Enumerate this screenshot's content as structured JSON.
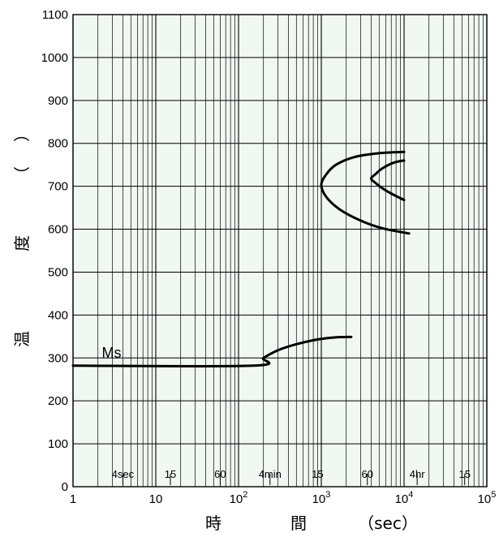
{
  "chart_data": {
    "type": "line",
    "x_scale": "log",
    "xlim": [
      1,
      100000
    ],
    "ylim": [
      0,
      1100
    ],
    "grid": true,
    "plot_background": "#f1f8f1",
    "line_color": "#000000",
    "x_ticks": [
      {
        "value": 1,
        "label": "1"
      },
      {
        "value": 10,
        "label": "10"
      },
      {
        "value": 100,
        "base": "10",
        "exp": "2"
      },
      {
        "value": 1000,
        "base": "10",
        "exp": "3"
      },
      {
        "value": 10000,
        "base": "10",
        "exp": "4"
      },
      {
        "value": 100000,
        "base": "10",
        "exp": "5"
      }
    ],
    "y_ticks": [
      0,
      100,
      200,
      300,
      400,
      500,
      600,
      700,
      800,
      900,
      1000,
      1100
    ],
    "time_markers": [
      {
        "label": "4sec",
        "value": 4
      },
      {
        "label": "15",
        "value": 15
      },
      {
        "label": "60",
        "value": 60
      },
      {
        "label": "4min",
        "value": 240
      },
      {
        "label": "15",
        "value": 900
      },
      {
        "label": "60",
        "value": 3600
      },
      {
        "label": "4hr",
        "value": 14400
      },
      {
        "label": "15",
        "value": 54000
      }
    ],
    "xlabel": [
      "時",
      "間",
      "（sec）"
    ],
    "ylabel": [
      "温",
      "度",
      "（",
      "）"
    ],
    "annotations": [
      {
        "text": "Ms",
        "x": 3.5,
        "y": 285
      }
    ],
    "series": [
      {
        "points": [
          [
            1,
            282
          ],
          [
            150,
            282
          ],
          [
            200,
            300
          ],
          [
            300,
            318
          ],
          [
            500,
            332
          ],
          [
            900,
            343
          ],
          [
            1500,
            348
          ],
          [
            2300,
            349
          ]
        ]
      },
      {
        "points": [
          [
            10000,
            780
          ],
          [
            5000,
            777
          ],
          [
            2500,
            768
          ],
          [
            1500,
            750
          ],
          [
            1150,
            728
          ],
          [
            1000,
            703
          ],
          [
            1150,
            675
          ],
          [
            1700,
            645
          ],
          [
            3000,
            620
          ],
          [
            5500,
            602
          ],
          [
            11500,
            590
          ]
        ]
      },
      {
        "points": [
          [
            10000,
            760
          ],
          [
            7500,
            755
          ],
          [
            5500,
            742
          ],
          [
            4500,
            728
          ],
          [
            4000,
            718
          ],
          [
            4500,
            708
          ],
          [
            5500,
            695
          ],
          [
            7000,
            683
          ],
          [
            10000,
            668
          ]
        ]
      }
    ]
  }
}
